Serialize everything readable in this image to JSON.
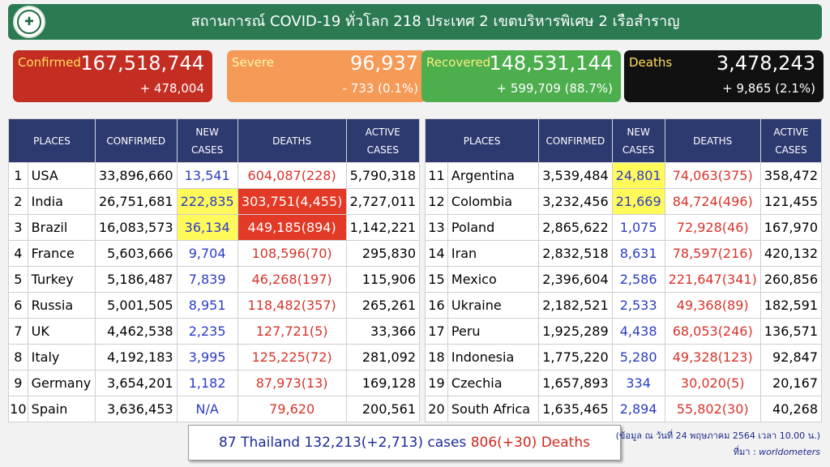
{
  "header": {
    "title": "สถานการณ์ COVID-19 ทั่วโลก 218 ประเทศ 2 เขตบริหารพิเศษ 2 เรือสำราญ",
    "logo_icon": "ministry-emblem"
  },
  "cards": {
    "confirmed": {
      "label": "Confirmed",
      "value": "167,518,744",
      "delta": "+ 478,004",
      "color": "#c32d22"
    },
    "severe": {
      "label": "Severe",
      "value": "96,937",
      "delta": "- 733 (0.1%)",
      "color": "#f59a57"
    },
    "recovered": {
      "label": "Recovered",
      "value": "148,531,144",
      "delta": "+ 599,709 (88.7%)",
      "color": "#4cae4c"
    },
    "deaths": {
      "label": "Deaths",
      "value": "3,478,243",
      "delta": "+ 9,865 (2.1%)",
      "color": "#111111"
    }
  },
  "columns": {
    "places": "PLACES",
    "confirmed": "CONFIRMED",
    "new_cases_1": "NEW",
    "new_cases_2": "CASES",
    "deaths": "DEATHS",
    "active_1": "ACTIVE",
    "active_2": "CASES"
  },
  "left_rows": [
    {
      "rank": "1",
      "place": "USA",
      "confirmed": "33,896,660",
      "new": "13,541",
      "deaths": "604,087(228)",
      "active": "5,790,318",
      "hl_new": "",
      "hl_deaths": ""
    },
    {
      "rank": "2",
      "place": "India",
      "confirmed": "26,751,681",
      "new": "222,835",
      "deaths": "303,751(4,455)",
      "active": "2,727,011",
      "hl_new": "yellow",
      "hl_deaths": "red"
    },
    {
      "rank": "3",
      "place": "Brazil",
      "confirmed": "16,083,573",
      "new": "36,134",
      "deaths": "449,185(894)",
      "active": "1,142,221",
      "hl_new": "yellow",
      "hl_deaths": "red"
    },
    {
      "rank": "4",
      "place": "France",
      "confirmed": "5,603,666",
      "new": "9,704",
      "deaths": "108,596(70)",
      "active": "295,830",
      "hl_new": "",
      "hl_deaths": ""
    },
    {
      "rank": "5",
      "place": "Turkey",
      "confirmed": "5,186,487",
      "new": "7,839",
      "deaths": "46,268(197)",
      "active": "115,906",
      "hl_new": "",
      "hl_deaths": ""
    },
    {
      "rank": "6",
      "place": "Russia",
      "confirmed": "5,001,505",
      "new": "8,951",
      "deaths": "118,482(357)",
      "active": "265,261",
      "hl_new": "",
      "hl_deaths": ""
    },
    {
      "rank": "7",
      "place": "UK",
      "confirmed": "4,462,538",
      "new": "2,235",
      "deaths": "127,721(5)",
      "active": "33,366",
      "hl_new": "",
      "hl_deaths": ""
    },
    {
      "rank": "8",
      "place": "Italy",
      "confirmed": "4,192,183",
      "new": "3,995",
      "deaths": "125,225(72)",
      "active": "281,092",
      "hl_new": "",
      "hl_deaths": ""
    },
    {
      "rank": "9",
      "place": "Germany",
      "confirmed": "3,654,201",
      "new": "1,182",
      "deaths": "87,973(13)",
      "active": "169,128",
      "hl_new": "",
      "hl_deaths": ""
    },
    {
      "rank": "10",
      "place": "Spain",
      "confirmed": "3,636,453",
      "new": "N/A",
      "deaths": "79,620",
      "active": "200,561",
      "hl_new": "",
      "hl_deaths": ""
    }
  ],
  "right_rows": [
    {
      "rank": "11",
      "place": "Argentina",
      "confirmed": "3,539,484",
      "new": "24,801",
      "deaths": "74,063(375)",
      "active": "358,472",
      "hl_new": "yellow",
      "hl_deaths": ""
    },
    {
      "rank": "12",
      "place": "Colombia",
      "confirmed": "3,232,456",
      "new": "21,669",
      "deaths": "84,724(496)",
      "active": "121,455",
      "hl_new": "yellow",
      "hl_deaths": ""
    },
    {
      "rank": "13",
      "place": "Poland",
      "confirmed": "2,865,622",
      "new": "1,075",
      "deaths": "72,928(46)",
      "active": "167,970",
      "hl_new": "",
      "hl_deaths": ""
    },
    {
      "rank": "14",
      "place": "Iran",
      "confirmed": "2,832,518",
      "new": "8,631",
      "deaths": "78,597(216)",
      "active": "420,132",
      "hl_new": "",
      "hl_deaths": ""
    },
    {
      "rank": "15",
      "place": "Mexico",
      "confirmed": "2,396,604",
      "new": "2,586",
      "deaths": "221,647(341)",
      "active": "260,856",
      "hl_new": "",
      "hl_deaths": ""
    },
    {
      "rank": "16",
      "place": "Ukraine",
      "confirmed": "2,182,521",
      "new": "2,533",
      "deaths": "49,368(89)",
      "active": "182,591",
      "hl_new": "",
      "hl_deaths": ""
    },
    {
      "rank": "17",
      "place": "Peru",
      "confirmed": "1,925,289",
      "new": "4,438",
      "deaths": "68,053(246)",
      "active": "136,571",
      "hl_new": "",
      "hl_deaths": ""
    },
    {
      "rank": "18",
      "place": "Indonesia",
      "confirmed": "1,775,220",
      "new": "5,280",
      "deaths": "49,328(123)",
      "active": "92,847",
      "hl_new": "",
      "hl_deaths": ""
    },
    {
      "rank": "19",
      "place": "Czechia",
      "confirmed": "1,657,893",
      "new": "334",
      "deaths": "30,020(5)",
      "active": "20,167",
      "hl_new": "",
      "hl_deaths": ""
    },
    {
      "rank": "20",
      "place": "South Africa",
      "confirmed": "1,635,465",
      "new": "2,894",
      "deaths": "55,802(30)",
      "active": "40,268",
      "hl_new": "",
      "hl_deaths": ""
    }
  ],
  "thailand": {
    "part1": "87 Thailand 132,213(+2,713) cases",
    "part2": "806(+30) Deaths"
  },
  "notes": {
    "date": "(ข้อมูล ณ วันที่ 24 พฤษภาคม 2564 เวลา 10.00 น.)",
    "source_prefix": "ที่มา : ",
    "source": "worldometers"
  }
}
